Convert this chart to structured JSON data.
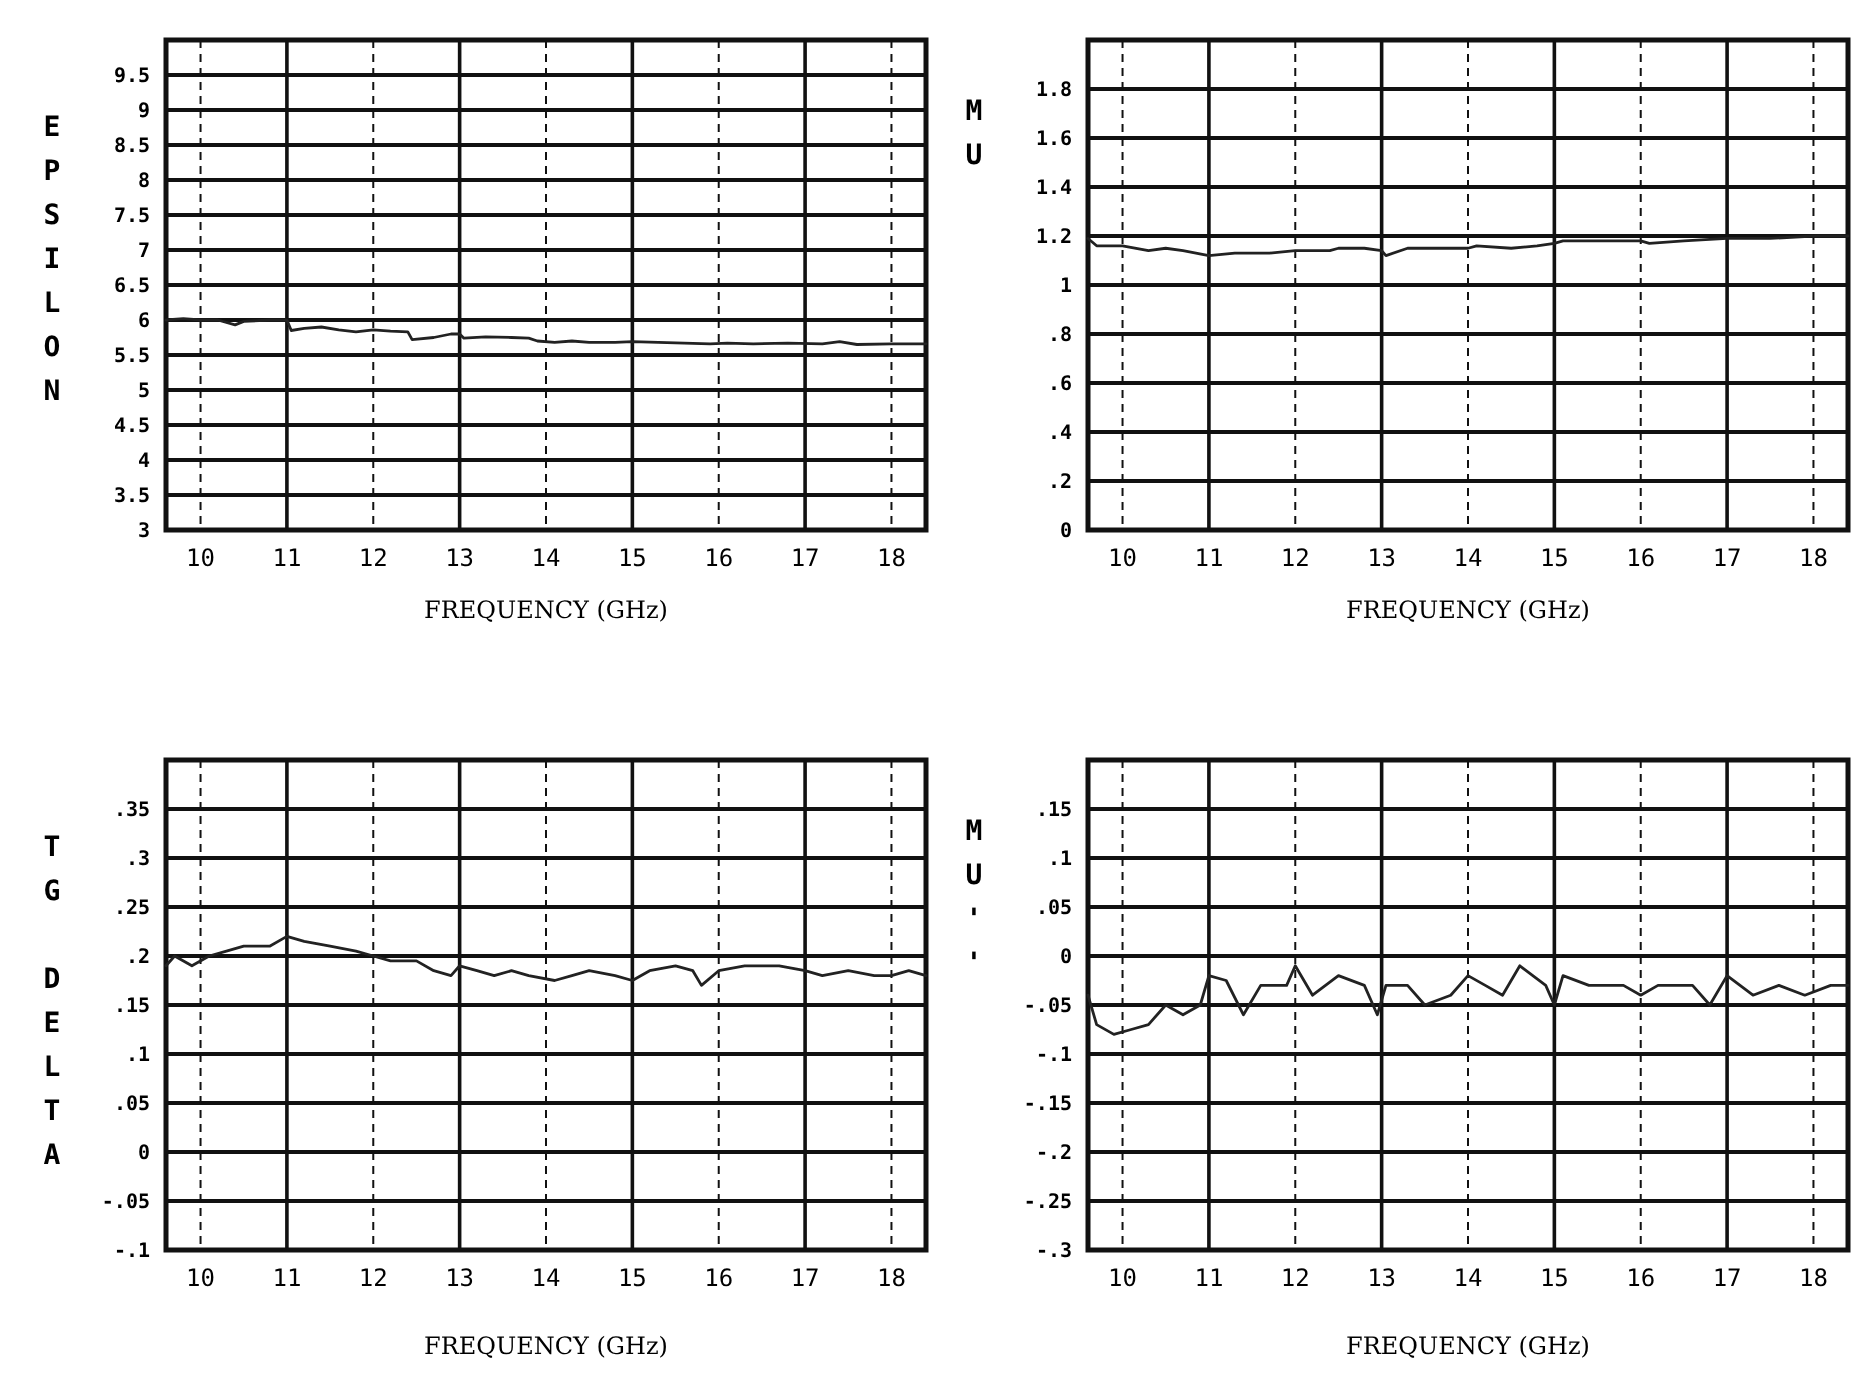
{
  "chart_data": [
    {
      "type": "line",
      "ylabel": "EPSILON",
      "xlabel": "FREQUENCY (GHz)",
      "xlim": [
        9.6,
        18.4
      ],
      "xticks": [
        10,
        11,
        12,
        13,
        14,
        15,
        16,
        17,
        18
      ],
      "ylim": [
        3,
        10
      ],
      "yticks": [
        3,
        3.5,
        4,
        4.5,
        5,
        5.5,
        6,
        6.5,
        7,
        7.5,
        8,
        8.5,
        9,
        9.5
      ],
      "grid": true,
      "marker": "none",
      "line_style": "solid",
      "series": [
        {
          "color": "#222222",
          "x": [
            9.6,
            9.8,
            10,
            10.2,
            10.4,
            10.5,
            10.8,
            11,
            11.05,
            11.2,
            11.4,
            11.6,
            11.8,
            12,
            12.2,
            12.4,
            12.45,
            12.7,
            12.9,
            13,
            13.05,
            13.3,
            13.6,
            13.8,
            13.9,
            14.1,
            14.3,
            14.5,
            14.8,
            15,
            15.3,
            15.6,
            15.9,
            16.1,
            16.4,
            16.8,
            17.2,
            17.4,
            17.6,
            18,
            18.4
          ],
          "values": [
            6.0,
            6.02,
            6.0,
            6.0,
            5.93,
            5.98,
            6.0,
            6.0,
            5.85,
            5.88,
            5.9,
            5.86,
            5.83,
            5.86,
            5.84,
            5.83,
            5.72,
            5.75,
            5.8,
            5.8,
            5.74,
            5.76,
            5.75,
            5.74,
            5.7,
            5.68,
            5.7,
            5.68,
            5.68,
            5.69,
            5.68,
            5.67,
            5.66,
            5.67,
            5.66,
            5.67,
            5.66,
            5.69,
            5.65,
            5.66,
            5.66
          ]
        }
      ]
    },
    {
      "type": "line",
      "ylabel": "MU",
      "xlabel": "FREQUENCY (GHz)",
      "xlim": [
        9.6,
        18.4
      ],
      "xticks": [
        10,
        11,
        12,
        13,
        14,
        15,
        16,
        17,
        18
      ],
      "ylim": [
        0,
        2
      ],
      "yticks": [
        0,
        {
          "value": 0.2,
          "label": ".2"
        },
        {
          "value": 0.4,
          "label": ".4"
        },
        {
          "value": 0.6,
          "label": ".6"
        },
        {
          "value": 0.8,
          "label": ".8"
        },
        1,
        1.2,
        1.4,
        1.6,
        1.8
      ],
      "grid": true,
      "marker": "none",
      "line_style": "solid",
      "series": [
        {
          "color": "#222222",
          "x": [
            9.6,
            9.7,
            10,
            10.3,
            10.5,
            10.7,
            11,
            11.3,
            11.7,
            12,
            12.4,
            12.5,
            12.8,
            13,
            13.05,
            13.3,
            13.6,
            14,
            14.1,
            14.5,
            14.8,
            15,
            15.1,
            15.5,
            16,
            16.1,
            16.5,
            17,
            17.5,
            18,
            18.4
          ],
          "values": [
            1.19,
            1.16,
            1.16,
            1.14,
            1.15,
            1.14,
            1.12,
            1.13,
            1.13,
            1.14,
            1.14,
            1.15,
            1.15,
            1.14,
            1.12,
            1.15,
            1.15,
            1.15,
            1.16,
            1.15,
            1.16,
            1.17,
            1.18,
            1.18,
            1.18,
            1.17,
            1.18,
            1.19,
            1.19,
            1.2,
            1.2
          ]
        }
      ]
    },
    {
      "type": "line",
      "ylabel": "TG DELTA",
      "xlabel": "FREQUENCY (GHz)",
      "xlim": [
        9.6,
        18.4
      ],
      "xticks": [
        10,
        11,
        12,
        13,
        14,
        15,
        16,
        17,
        18
      ],
      "ylim": [
        -0.1,
        0.4
      ],
      "yticks": [
        {
          "value": -0.1,
          "label": "-.1"
        },
        {
          "value": -0.05,
          "label": "-.05"
        },
        0,
        {
          "value": 0.05,
          "label": ".05"
        },
        {
          "value": 0.1,
          "label": ".1"
        },
        {
          "value": 0.15,
          "label": ".15"
        },
        {
          "value": 0.2,
          "label": ".2"
        },
        {
          "value": 0.25,
          "label": ".25"
        },
        {
          "value": 0.3,
          "label": ".3"
        },
        {
          "value": 0.35,
          "label": ".35"
        }
      ],
      "grid": true,
      "marker": "none",
      "line_style": "solid",
      "series": [
        {
          "color": "#222222",
          "x": [
            9.6,
            9.7,
            9.9,
            10.1,
            10.3,
            10.5,
            10.8,
            11,
            11.2,
            11.5,
            11.8,
            12,
            12.2,
            12.5,
            12.7,
            12.9,
            13,
            13.2,
            13.4,
            13.6,
            13.8,
            14.1,
            14.3,
            14.5,
            14.8,
            15,
            15.2,
            15.5,
            15.7,
            15.8,
            16,
            16.3,
            16.7,
            17,
            17.2,
            17.5,
            17.8,
            18,
            18.2,
            18.4
          ],
          "values": [
            0.19,
            0.2,
            0.19,
            0.2,
            0.205,
            0.21,
            0.21,
            0.22,
            0.215,
            0.21,
            0.205,
            0.2,
            0.195,
            0.195,
            0.185,
            0.18,
            0.19,
            0.185,
            0.18,
            0.185,
            0.18,
            0.175,
            0.18,
            0.185,
            0.18,
            0.175,
            0.185,
            0.19,
            0.185,
            0.17,
            0.185,
            0.19,
            0.19,
            0.185,
            0.18,
            0.185,
            0.18,
            0.18,
            0.185,
            0.18
          ]
        }
      ]
    },
    {
      "type": "line",
      "ylabel": "MU''",
      "xlabel": "FREQUENCY (GHz)",
      "xlim": [
        9.6,
        18.4
      ],
      "xticks": [
        10,
        11,
        12,
        13,
        14,
        15,
        16,
        17,
        18
      ],
      "ylim": [
        -0.3,
        0.2
      ],
      "yticks": [
        {
          "value": -0.3,
          "label": "-.3"
        },
        {
          "value": -0.25,
          "label": "-.25"
        },
        {
          "value": -0.2,
          "label": "-.2"
        },
        {
          "value": -0.15,
          "label": "-.15"
        },
        {
          "value": -0.1,
          "label": "-.1"
        },
        {
          "value": -0.05,
          "label": "-.05"
        },
        0,
        {
          "value": 0.05,
          "label": ".05"
        },
        {
          "value": 0.1,
          "label": ".1"
        },
        {
          "value": 0.15,
          "label": ".15"
        }
      ],
      "grid": true,
      "marker": "none",
      "line_style": "solid",
      "series": [
        {
          "color": "#222222",
          "x": [
            9.6,
            9.7,
            9.9,
            10.1,
            10.3,
            10.5,
            10.7,
            10.9,
            11,
            11.2,
            11.4,
            11.6,
            11.9,
            12,
            12.2,
            12.5,
            12.8,
            12.95,
            13.05,
            13.3,
            13.5,
            13.8,
            14,
            14.2,
            14.4,
            14.6,
            14.9,
            15,
            15.1,
            15.4,
            15.8,
            16,
            16.2,
            16.6,
            16.8,
            17,
            17.3,
            17.6,
            17.9,
            18.2,
            18.4
          ],
          "values": [
            -0.04,
            -0.07,
            -0.08,
            -0.075,
            -0.07,
            -0.05,
            -0.06,
            -0.05,
            -0.02,
            -0.025,
            -0.06,
            -0.03,
            -0.03,
            -0.01,
            -0.04,
            -0.02,
            -0.03,
            -0.06,
            -0.03,
            -0.03,
            -0.05,
            -0.04,
            -0.02,
            -0.03,
            -0.04,
            -0.01,
            -0.03,
            -0.05,
            -0.02,
            -0.03,
            -0.03,
            -0.04,
            -0.03,
            -0.03,
            -0.05,
            -0.02,
            -0.04,
            -0.03,
            -0.04,
            -0.03,
            -0.03
          ]
        }
      ]
    }
  ]
}
